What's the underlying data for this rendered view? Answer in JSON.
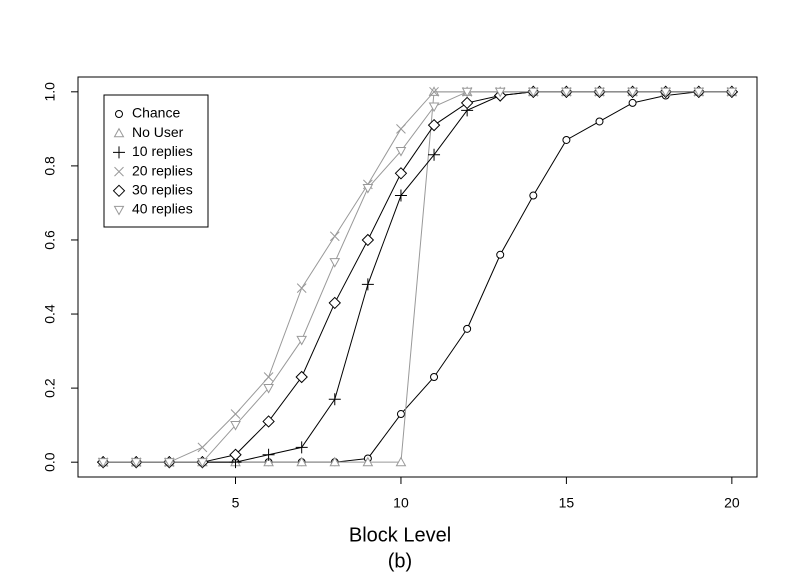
{
  "chart_data": {
    "type": "line",
    "x": [
      1,
      2,
      3,
      4,
      5,
      6,
      7,
      8,
      9,
      10,
      11,
      12,
      13,
      14,
      15,
      16,
      17,
      18,
      19,
      20
    ],
    "xlabel": "Block Level",
    "caption": "(b)",
    "series": [
      {
        "name": "Chance",
        "color": "#000000",
        "marker": "circle",
        "values": [
          0,
          0,
          0,
          0,
          0,
          0,
          0,
          0,
          0.01,
          0.13,
          0.23,
          0.36,
          0.56,
          0.72,
          0.87,
          0.92,
          0.97,
          0.99,
          1.0,
          1.0
        ]
      },
      {
        "name": "No User",
        "color": "#999999",
        "marker": "triangle-up",
        "values": [
          0,
          0,
          0,
          0,
          0,
          0,
          0,
          0,
          0,
          0,
          1.0,
          1.0,
          1.0,
          1.0,
          1.0,
          1.0,
          1.0,
          1.0,
          1.0,
          1.0
        ]
      },
      {
        "name": "10 replies",
        "color": "#000000",
        "marker": "plus",
        "values": [
          0,
          0,
          0,
          0,
          0,
          0.02,
          0.04,
          0.17,
          0.48,
          0.72,
          0.83,
          0.95,
          0.99,
          1.0,
          1.0,
          1.0,
          1.0,
          1.0,
          1.0,
          1.0
        ]
      },
      {
        "name": "20 replies",
        "color": "#999999",
        "marker": "cross",
        "values": [
          0,
          0,
          0,
          0.04,
          0.13,
          0.23,
          0.47,
          0.61,
          0.75,
          0.9,
          1.0,
          1.0,
          1.0,
          1.0,
          1.0,
          1.0,
          1.0,
          1.0,
          1.0,
          1.0
        ]
      },
      {
        "name": "30 replies",
        "color": "#000000",
        "marker": "diamond",
        "values": [
          0,
          0,
          0,
          0,
          0.02,
          0.11,
          0.23,
          0.43,
          0.6,
          0.78,
          0.91,
          0.97,
          0.99,
          1.0,
          1.0,
          1.0,
          1.0,
          1.0,
          1.0,
          1.0
        ]
      },
      {
        "name": "40 replies",
        "color": "#999999",
        "marker": "triangle-down",
        "values": [
          0,
          0,
          0,
          0,
          0.1,
          0.2,
          0.33,
          0.54,
          0.74,
          0.84,
          0.96,
          1.0,
          1.0,
          1.0,
          1.0,
          1.0,
          1.0,
          1.0,
          1.0,
          1.0
        ]
      }
    ],
    "xlim": [
      0.24,
      20.76
    ],
    "ylim": [
      -0.04,
      1.04
    ],
    "xticks": [
      5,
      10,
      15,
      20
    ],
    "yticks": [
      {
        "value": 0,
        "label": "0.0"
      },
      0.2,
      0.4,
      0.6,
      0.8,
      {
        "value": 1,
        "label": "1.0"
      }
    ],
    "legend": "top-left",
    "grid": false
  }
}
